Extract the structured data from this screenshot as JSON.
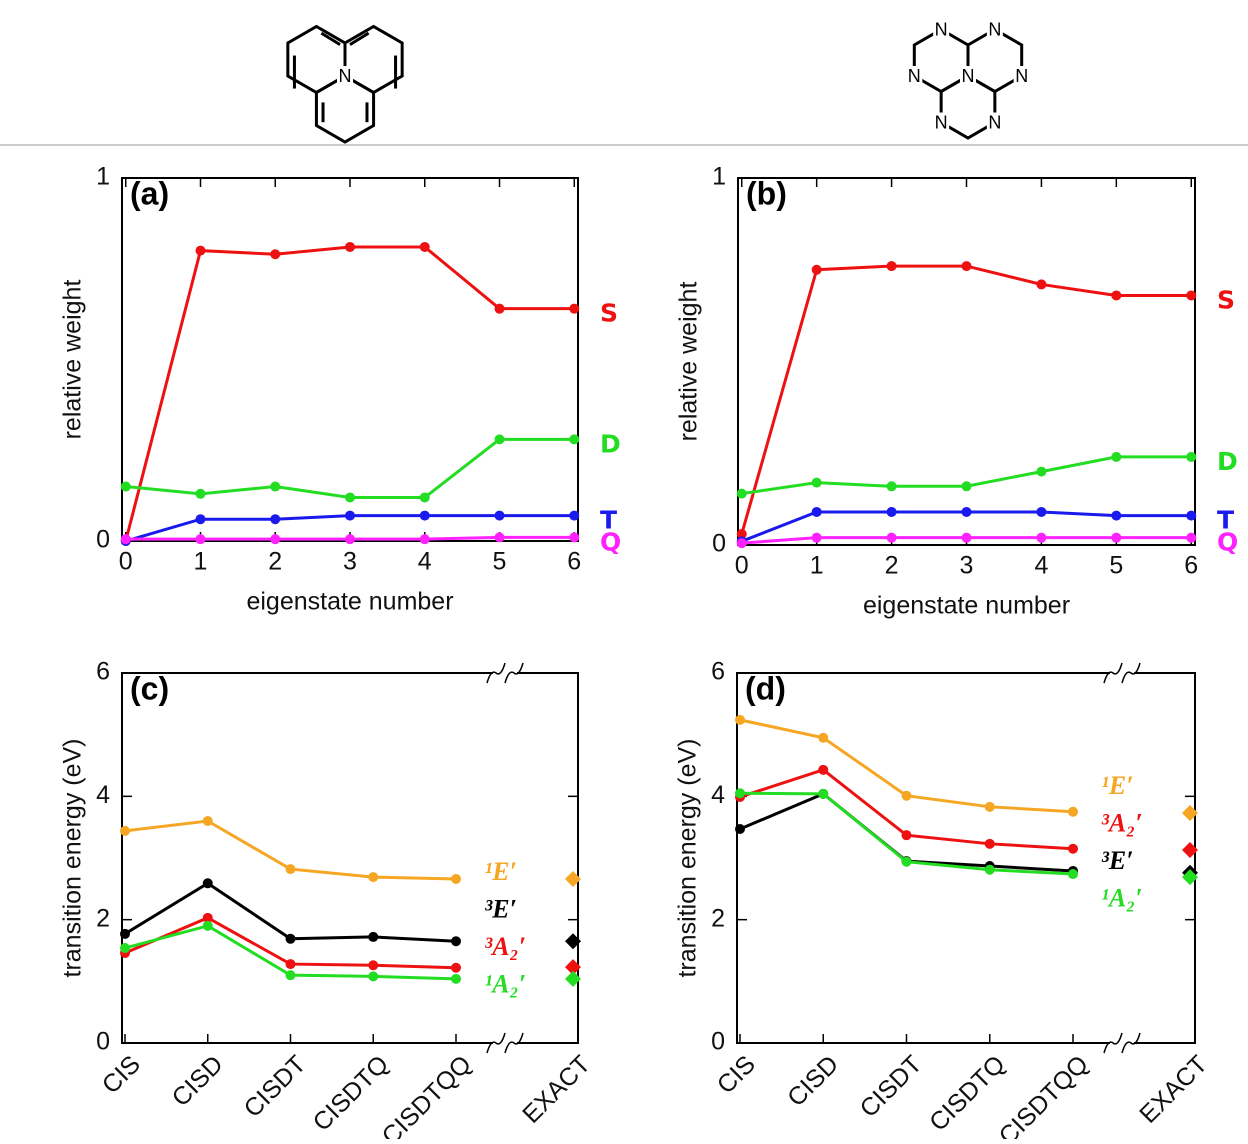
{
  "structure_labels": [
    [
      "N"
    ],
    [
      "N",
      "N",
      "N",
      "N",
      "N",
      "N",
      "N"
    ]
  ],
  "chart_data": [
    {
      "type": "line",
      "panel_label": "(a)",
      "ylabel": "relative weight",
      "xlabel": "eigenstate number",
      "x": [
        0,
        1,
        2,
        3,
        4,
        5,
        6
      ],
      "xlim": [
        -0.05,
        6.05
      ],
      "xticks": [
        0,
        1,
        2,
        3,
        4,
        5,
        6
      ],
      "ylim": [
        0,
        1
      ],
      "yticks": [
        0,
        1
      ],
      "legend": "right",
      "series": [
        {
          "name": "S",
          "color": "#ee1111",
          "values": [
            0,
            0.8,
            0.79,
            0.81,
            0.81,
            0.64,
            0.64
          ]
        },
        {
          "name": "D",
          "color": "#22dd22",
          "values": [
            0.15,
            0.13,
            0.15,
            0.12,
            0.12,
            0.28,
            0.28
          ]
        },
        {
          "name": "T",
          "color": "#1a1aee",
          "values": [
            0,
            0.06,
            0.06,
            0.07,
            0.07,
            0.07,
            0.07
          ]
        },
        {
          "name": "Q",
          "color": "#ff22ff",
          "values": [
            0.005,
            0.005,
            0.005,
            0.005,
            0.005,
            0.01,
            0.01
          ]
        }
      ]
    },
    {
      "type": "line",
      "panel_label": "(b)",
      "ylabel": "relative weight",
      "xlabel": "eigenstate number",
      "x": [
        0,
        1,
        2,
        3,
        4,
        5,
        6
      ],
      "xlim": [
        -0.05,
        6.05
      ],
      "xticks": [
        0,
        1,
        2,
        3,
        4,
        5,
        6
      ],
      "ylim": [
        0,
        1
      ],
      "yticks": [
        0,
        1
      ],
      "legend": "right",
      "series": [
        {
          "name": "S",
          "color": "#ee1111",
          "values": [
            0.03,
            0.75,
            0.76,
            0.76,
            0.71,
            0.68,
            0.68
          ]
        },
        {
          "name": "D",
          "color": "#22dd22",
          "values": [
            0.14,
            0.17,
            0.16,
            0.16,
            0.2,
            0.24,
            0.24
          ]
        },
        {
          "name": "T",
          "color": "#1a1aee",
          "values": [
            0.01,
            0.09,
            0.09,
            0.09,
            0.09,
            0.08,
            0.08
          ]
        },
        {
          "name": "Q",
          "color": "#ff22ff",
          "values": [
            0.005,
            0.02,
            0.02,
            0.02,
            0.02,
            0.02,
            0.02
          ]
        }
      ]
    },
    {
      "type": "line",
      "panel_label": "(c)",
      "ylabel": "transition energy (eV)",
      "categories": [
        "CIS",
        "CISD",
        "CISDT",
        "CISDTQ",
        "CISDTQQ"
      ],
      "reference_category": "EXACT",
      "axis_break": true,
      "ylim": [
        0,
        6
      ],
      "yticks": [
        0,
        2,
        4,
        6
      ],
      "legend": "right",
      "series": [
        {
          "name": "¹E′",
          "color": "#f5a623",
          "values": [
            3.44,
            3.6,
            2.82,
            2.69,
            2.66
          ],
          "reference_value": 2.66
        },
        {
          "name": "³E′",
          "color": "#000000",
          "values": [
            1.77,
            2.59,
            1.69,
            1.72,
            1.65
          ],
          "reference_value": 1.65
        },
        {
          "name": "³A₂′",
          "color": "#ee1111",
          "values": [
            1.46,
            2.03,
            1.28,
            1.26,
            1.22
          ],
          "reference_value": 1.23
        },
        {
          "name": "¹A₂′",
          "color": "#22dd22",
          "values": [
            1.54,
            1.9,
            1.1,
            1.08,
            1.04
          ],
          "reference_value": 1.04
        }
      ]
    },
    {
      "type": "line",
      "panel_label": "(d)",
      "ylabel": "transition energy (eV)",
      "categories": [
        "CIS",
        "CISD",
        "CISDT",
        "CISDTQ",
        "CISDTQQ"
      ],
      "reference_category": "EXACT",
      "axis_break": true,
      "ylim": [
        0,
        6
      ],
      "yticks": [
        0,
        2,
        4,
        6
      ],
      "legend": "right",
      "series": [
        {
          "name": "¹E′",
          "color": "#f5a623",
          "values": [
            5.24,
            4.95,
            4.01,
            3.83,
            3.75
          ],
          "reference_value": 3.73
        },
        {
          "name": "³A₂′",
          "color": "#ee1111",
          "values": [
            3.99,
            4.43,
            3.37,
            3.23,
            3.15
          ],
          "reference_value": 3.13
        },
        {
          "name": "³E′",
          "color": "#000000",
          "values": [
            3.47,
            4.04,
            2.95,
            2.87,
            2.79
          ],
          "reference_value": 2.76
        },
        {
          "name": "¹A₂′",
          "color": "#22dd22",
          "values": [
            4.05,
            4.04,
            2.94,
            2.81,
            2.74
          ],
          "reference_value": 2.69
        }
      ]
    }
  ]
}
